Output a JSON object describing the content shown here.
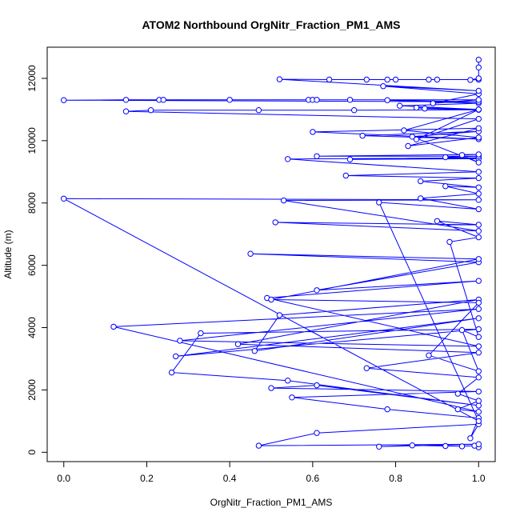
{
  "chart_data": {
    "type": "scatter",
    "title": "ATOM2 Northbound OrgNitr_Fraction_PM1_AMS",
    "xlabel": "OrgNitr_Fraction_PM1_AMS",
    "ylabel": "Altitude (m)",
    "xlim": [
      -0.04,
      1.04
    ],
    "ylim": [
      -300,
      13000
    ],
    "x_ticks": [
      0.0,
      0.2,
      0.4,
      0.6,
      0.8,
      1.0
    ],
    "x_tick_labels": [
      "0.0",
      "0.2",
      "0.4",
      "0.6",
      "0.8",
      "1.0"
    ],
    "y_ticks": [
      0,
      2000,
      4000,
      6000,
      8000,
      10000,
      12000
    ],
    "y_tick_labels": [
      "0",
      "2000",
      "4000",
      "6000",
      "8000",
      "10000",
      "12000"
    ],
    "grid": false,
    "series_color": "#0000ff",
    "series": [
      {
        "style": "line+open-circle",
        "points": [
          [
            1.0,
            160
          ],
          [
            0.99,
            210
          ],
          [
            0.96,
            190
          ],
          [
            0.92,
            200
          ],
          [
            0.84,
            220
          ],
          [
            0.76,
            180
          ],
          [
            1.0,
            260
          ],
          [
            0.47,
            210
          ],
          [
            0.61,
            620
          ],
          [
            1.0,
            900
          ],
          [
            0.98,
            450
          ],
          [
            1.0,
            1100
          ],
          [
            0.78,
            1380
          ],
          [
            0.55,
            1760
          ],
          [
            1.0,
            1950
          ],
          [
            0.5,
            2060
          ],
          [
            0.61,
            2150
          ],
          [
            1.0,
            1500
          ],
          [
            0.54,
            2300
          ],
          [
            0.26,
            2560
          ],
          [
            0.33,
            3820
          ],
          [
            1.0,
            3950
          ],
          [
            0.27,
            3080
          ],
          [
            1.0,
            4300
          ],
          [
            0.46,
            3250
          ],
          [
            0.52,
            4400
          ],
          [
            1.0,
            4900
          ],
          [
            0.42,
            3470
          ],
          [
            1.0,
            3200
          ],
          [
            0.73,
            2700
          ],
          [
            1.0,
            2400
          ],
          [
            0.95,
            1880
          ],
          [
            1.0,
            1650
          ],
          [
            0.95,
            1380
          ],
          [
            1.0,
            1300
          ],
          [
            0.12,
            4030
          ],
          [
            1.0,
            4600
          ],
          [
            0.28,
            3580
          ],
          [
            1.0,
            3400
          ],
          [
            0.49,
            4950
          ],
          [
            1.0,
            5500
          ],
          [
            0.61,
            5200
          ],
          [
            1.0,
            6100
          ],
          [
            0.45,
            6370
          ],
          [
            1.0,
            6200
          ],
          [
            0.5,
            4900
          ],
          [
            1.0,
            4800
          ],
          [
            0.88,
            3110
          ],
          [
            1.0,
            2600
          ],
          [
            0.96,
            3920
          ],
          [
            1.0,
            3700
          ],
          [
            0.93,
            6750
          ],
          [
            1.0,
            6900
          ],
          [
            0.9,
            7420
          ],
          [
            1.0,
            7300
          ],
          [
            0.51,
            7380
          ],
          [
            1.0,
            7100
          ],
          [
            0.53,
            8080
          ],
          [
            1.0,
            8100
          ],
          [
            0.0,
            8140
          ],
          [
            1.0,
            1000
          ],
          [
            0.76,
            8020
          ],
          [
            1.0,
            7800
          ],
          [
            0.86,
            8150
          ],
          [
            1.0,
            8300
          ],
          [
            0.92,
            8540
          ],
          [
            1.0,
            8500
          ],
          [
            0.86,
            8700
          ],
          [
            1.0,
            8800
          ],
          [
            0.68,
            8880
          ],
          [
            1.0,
            9000
          ],
          [
            0.54,
            9410
          ],
          [
            1.0,
            9450
          ],
          [
            0.69,
            9400
          ],
          [
            1.0,
            9420
          ],
          [
            0.92,
            9470
          ],
          [
            1.0,
            9500
          ],
          [
            0.61,
            9500
          ],
          [
            1.0,
            9560
          ],
          [
            0.96,
            9540
          ],
          [
            1.0,
            9300
          ],
          [
            0.84,
            10130
          ],
          [
            1.0,
            10300
          ],
          [
            0.72,
            10160
          ],
          [
            1.0,
            10050
          ],
          [
            0.6,
            10280
          ],
          [
            1.0,
            10400
          ],
          [
            0.83,
            9830
          ],
          [
            1.0,
            10100
          ],
          [
            0.82,
            10330
          ],
          [
            1.0,
            11000
          ],
          [
            0.85,
            10040
          ],
          [
            1.0,
            10700
          ],
          [
            0.15,
            10940
          ],
          [
            0.21,
            10980
          ],
          [
            0.47,
            10980
          ],
          [
            0.7,
            10980
          ],
          [
            1.0,
            10990
          ],
          [
            0.87,
            11030
          ],
          [
            0.85,
            11060
          ],
          [
            1.0,
            11000
          ],
          [
            0.81,
            11120
          ],
          [
            1.0,
            11200
          ],
          [
            0.78,
            11300
          ],
          [
            1.0,
            11250
          ],
          [
            0.0,
            11300
          ],
          [
            0.15,
            11310
          ],
          [
            0.23,
            11310
          ],
          [
            0.24,
            11310
          ],
          [
            0.4,
            11310
          ],
          [
            0.59,
            11310
          ],
          [
            0.6,
            11310
          ],
          [
            0.61,
            11310
          ],
          [
            0.69,
            11310
          ],
          [
            1.0,
            11310
          ],
          [
            0.89,
            11200
          ],
          [
            1.0,
            11500
          ],
          [
            0.77,
            11750
          ],
          [
            1.0,
            11600
          ],
          [
            0.52,
            11970
          ],
          [
            0.64,
            11960
          ],
          [
            0.73,
            11960
          ],
          [
            0.78,
            11960
          ],
          [
            0.8,
            11960
          ],
          [
            0.88,
            11960
          ],
          [
            0.9,
            11960
          ],
          [
            1.0,
            11960
          ],
          [
            0.98,
            11950
          ],
          [
            1.0,
            12000
          ],
          [
            1.0,
            12350
          ],
          [
            1.0,
            12600
          ]
        ]
      }
    ]
  }
}
